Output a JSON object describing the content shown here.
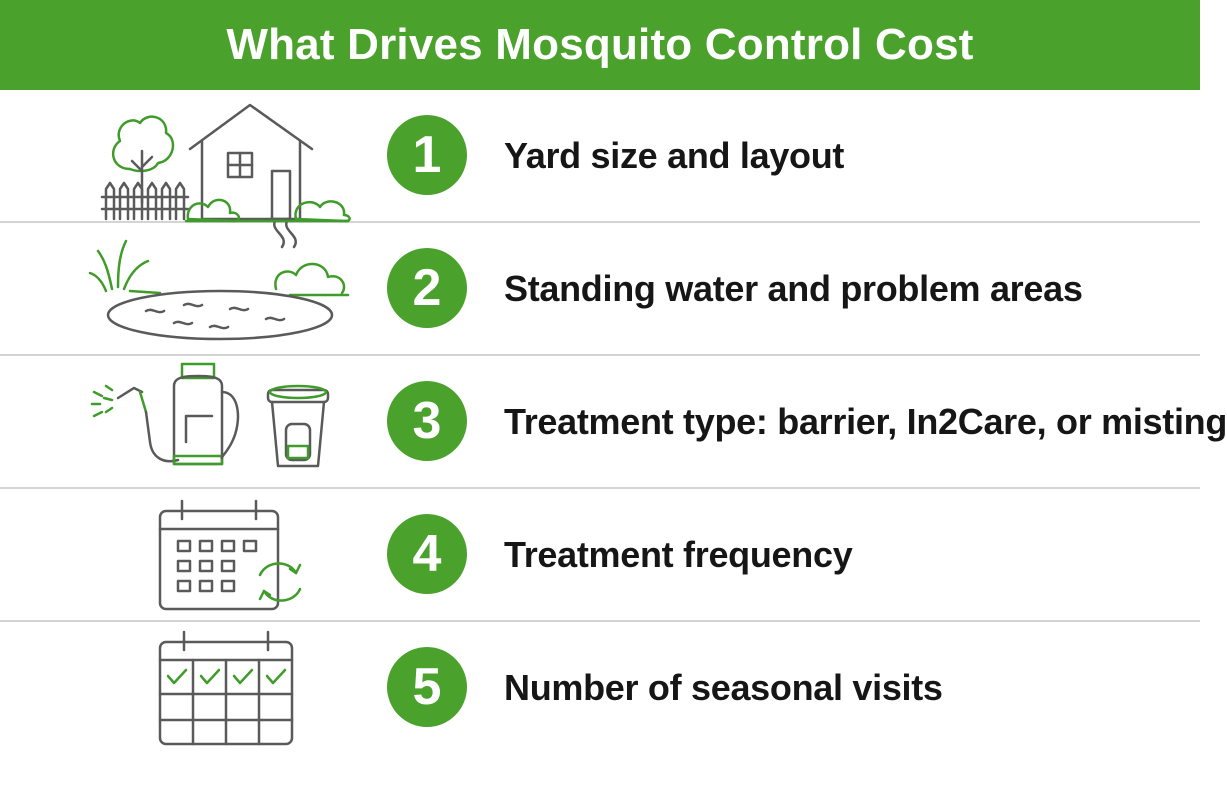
{
  "title": "What Drives Mosquito Control Cost",
  "colors": {
    "accent": "#4aa12b",
    "text": "#161616",
    "divider": "#d4d4d4"
  },
  "items": [
    {
      "number": "1",
      "label": "Yard size and layout",
      "icon": "house-yard-icon"
    },
    {
      "number": "2",
      "label": "Standing water and problem areas",
      "icon": "pond-icon"
    },
    {
      "number": "3",
      "label": "Treatment type: barrier, In2Care, or misting",
      "icon": "sprayer-trap-icon"
    },
    {
      "number": "4",
      "label": "Treatment frequency",
      "icon": "calendar-recurring-icon"
    },
    {
      "number": "5",
      "label": "Number of seasonal visits",
      "icon": "calendar-checked-icon"
    }
  ]
}
